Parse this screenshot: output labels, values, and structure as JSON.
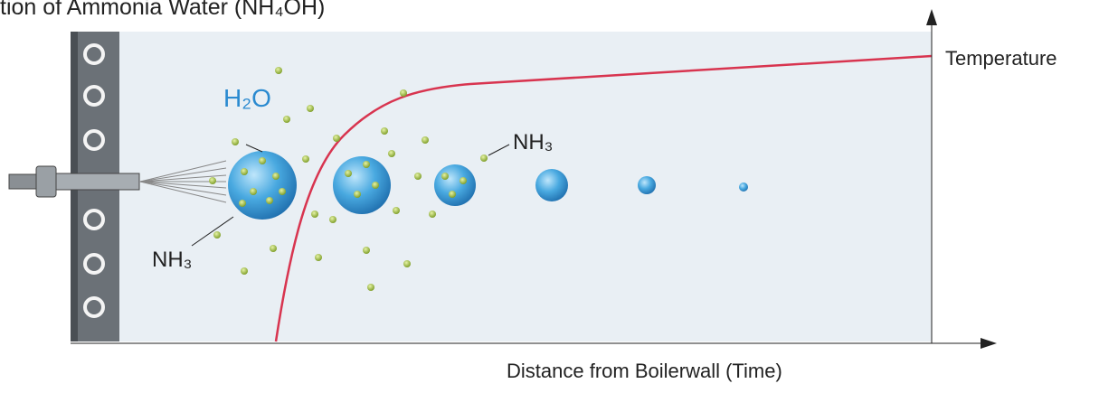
{
  "title": "tion of Ammonia Water (NH₄OH)",
  "y_axis_label": "Temperature",
  "x_axis_label": "Distance from Boilerwall (Time)",
  "labels": {
    "water": "H₂O",
    "ammonia_right": "NH₃",
    "ammonia_left": "NH₃"
  }
}
